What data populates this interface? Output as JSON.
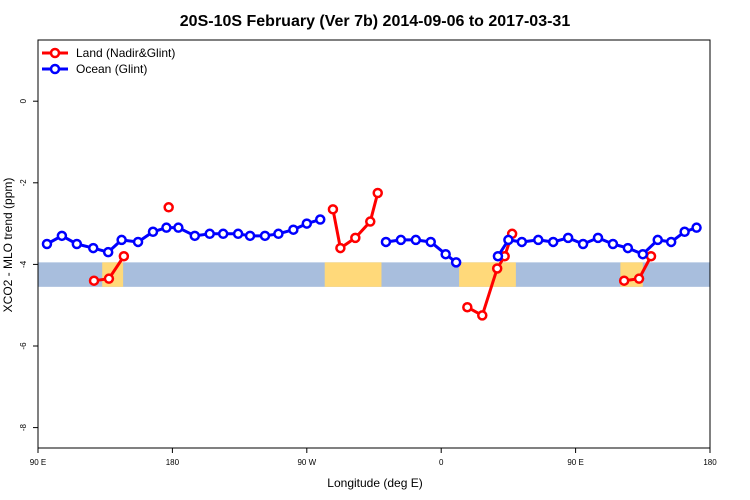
{
  "chart_data": {
    "type": "line",
    "title": "20S-10S February (Ver 7b)   2014-09-06 to 2017-03-31",
    "xlabel": "Longitude (deg E)",
    "ylabel": "XCO2 - MLO trend (ppm)",
    "xlim": [
      90,
      540
    ],
    "ylim": [
      -8.5,
      1.5
    ],
    "x_ticks": [
      {
        "value": 90,
        "label": "90 E"
      },
      {
        "value": 180,
        "label": "180"
      },
      {
        "value": 270,
        "label": "90 W"
      },
      {
        "value": 360,
        "label": "0"
      },
      {
        "value": 450,
        "label": "90 E"
      },
      {
        "value": 540,
        "label": "180"
      }
    ],
    "y_ticks": [
      {
        "value": 0,
        "label": "0"
      },
      {
        "value": -2,
        "label": "-2"
      },
      {
        "value": -4,
        "label": "-4"
      },
      {
        "value": -6,
        "label": "-6"
      },
      {
        "value": -8,
        "label": "-8"
      }
    ],
    "legend_position": "top-left",
    "land_band": {
      "y_top": -3.95,
      "y_bottom": -4.55,
      "ocean_color": "#a8bedd",
      "land_color": "#ffd97a"
    },
    "land_segments": [
      [
        133,
        147
      ],
      [
        282,
        320
      ],
      [
        372,
        410
      ],
      [
        480,
        495
      ]
    ],
    "series": [
      {
        "name": "Land (Nadir&Glint)",
        "color": "#ff0000",
        "segments": [
          [
            [
              127.5,
              -4.4
            ],
            [
              137.5,
              -4.35
            ],
            [
              147.5,
              -3.8
            ]
          ],
          [
            [
              177.5,
              -2.6
            ]
          ],
          [
            [
              287.5,
              -2.65
            ],
            [
              292.5,
              -3.6
            ],
            [
              302.5,
              -3.35
            ],
            [
              312.5,
              -2.95
            ],
            [
              317.5,
              -2.25
            ]
          ],
          [
            [
              377.5,
              -5.05
            ],
            [
              387.5,
              -5.25
            ],
            [
              397.5,
              -4.1
            ],
            [
              402.5,
              -3.8
            ],
            [
              407.5,
              -3.25
            ]
          ],
          [
            [
              482.5,
              -4.4
            ],
            [
              492.5,
              -4.35
            ],
            [
              500.5,
              -3.8
            ]
          ]
        ]
      },
      {
        "name": "Ocean (Glint)",
        "color": "#0000ff",
        "segments": [
          [
            [
              96,
              -3.5
            ],
            [
              106,
              -3.3
            ],
            [
              116,
              -3.5
            ],
            [
              127,
              -3.6
            ],
            [
              137,
              -3.7
            ],
            [
              146,
              -3.4
            ],
            [
              157,
              -3.45
            ],
            [
              167,
              -3.2
            ],
            [
              176,
              -3.1
            ],
            [
              184,
              -3.1
            ],
            [
              195,
              -3.3
            ],
            [
              205,
              -3.25
            ],
            [
              214,
              -3.25
            ],
            [
              224,
              -3.25
            ],
            [
              232,
              -3.3
            ],
            [
              242,
              -3.3
            ],
            [
              251,
              -3.25
            ],
            [
              261,
              -3.15
            ],
            [
              270,
              -3.0
            ],
            [
              279,
              -2.9
            ]
          ],
          [
            [
              323,
              -3.45
            ],
            [
              333,
              -3.4
            ],
            [
              343,
              -3.4
            ],
            [
              353,
              -3.45
            ],
            [
              363,
              -3.75
            ],
            [
              370,
              -3.95
            ]
          ],
          [
            [
              398,
              -3.8
            ],
            [
              405,
              -3.4
            ],
            [
              414,
              -3.45
            ],
            [
              425,
              -3.4
            ],
            [
              435,
              -3.45
            ],
            [
              445,
              -3.35
            ],
            [
              455,
              -3.5
            ],
            [
              465,
              -3.35
            ],
            [
              475,
              -3.5
            ],
            [
              485,
              -3.6
            ],
            [
              495,
              -3.75
            ],
            [
              505,
              -3.4
            ],
            [
              514,
              -3.45
            ],
            [
              523,
              -3.2
            ],
            [
              531,
              -3.1
            ]
          ]
        ]
      }
    ]
  }
}
